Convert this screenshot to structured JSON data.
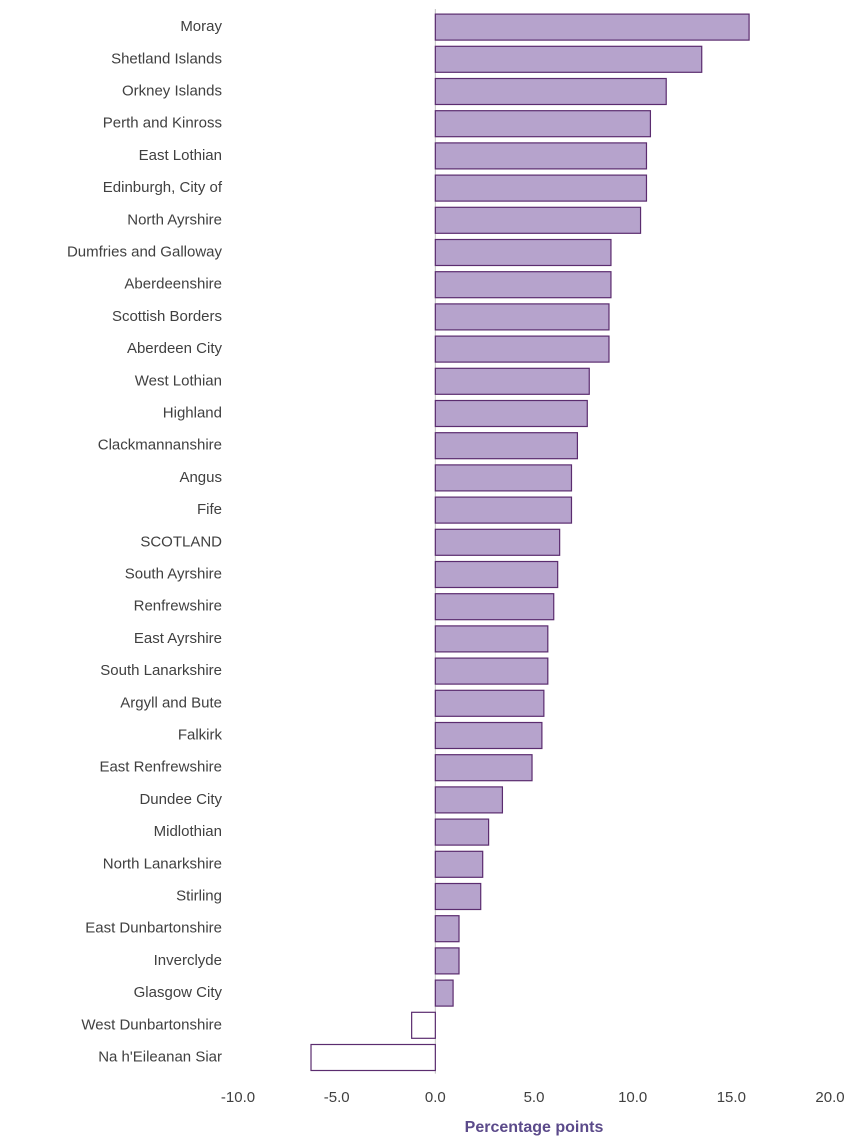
{
  "chart_data": {
    "type": "bar",
    "orientation": "horizontal",
    "categories": [
      "Moray",
      "Shetland Islands",
      "Orkney Islands",
      "Perth and Kinross",
      "East Lothian",
      "Edinburgh, City of",
      "North Ayrshire",
      "Dumfries and Galloway",
      "Aberdeenshire",
      "Scottish Borders",
      "Aberdeen City",
      "West Lothian",
      "Highland",
      "Clackmannanshire",
      "Angus",
      "Fife",
      "SCOTLAND",
      "South Ayrshire",
      "Renfrewshire",
      "East Ayrshire",
      "South Lanarkshire",
      "Argyll and Bute",
      "Falkirk",
      "East Renfrewshire",
      "Dundee City",
      "Midlothian",
      "North Lanarkshire",
      "Stirling",
      "East Dunbartonshire",
      "Inverclyde",
      "Glasgow City",
      "West Dunbartonshire",
      "Na h'Eileanan Siar"
    ],
    "values": [
      15.9,
      13.5,
      11.7,
      10.9,
      10.7,
      10.7,
      10.4,
      8.9,
      8.9,
      8.8,
      8.8,
      7.8,
      7.7,
      7.2,
      6.9,
      6.9,
      6.3,
      6.2,
      6.0,
      5.7,
      5.7,
      5.5,
      5.4,
      4.9,
      3.4,
      2.7,
      2.4,
      2.3,
      1.2,
      1.2,
      0.9,
      -1.2,
      -6.3
    ],
    "color": "#b6a3cc",
    "edge_color": "#5b2c6f",
    "negative_color": "#ffffff",
    "xlim": [
      -10,
      20
    ],
    "xticks": [
      {
        "value": -10,
        "label": "-10.0"
      },
      {
        "value": -5,
        "label": "-5.0"
      },
      {
        "value": 0,
        "label": "0.0"
      },
      {
        "value": 5,
        "label": "5.0"
      },
      {
        "value": 10,
        "label": "10.0"
      },
      {
        "value": 15,
        "label": "15.0"
      },
      {
        "value": 20,
        "label": "20.0"
      }
    ],
    "x_label": "Percentage points",
    "grid": false
  }
}
